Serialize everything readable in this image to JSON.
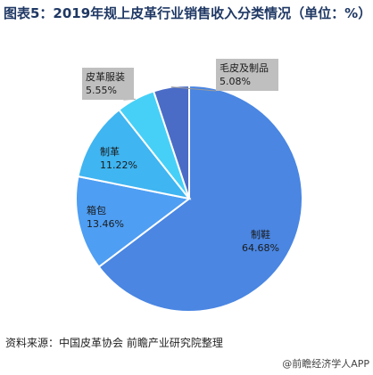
{
  "chart_data": {
    "type": "pie",
    "title": "图表5：2019年规上皮革行业销售收入分类情况（单位：%）",
    "slices": [
      {
        "name": "制鞋",
        "value": 64.68,
        "display": "64.68%",
        "color": "#4a86e2"
      },
      {
        "name": "箱包",
        "value": 13.46,
        "display": "13.46%",
        "color": "#4e9ef3"
      },
      {
        "name": "制革",
        "value": 11.22,
        "display": "11.22%",
        "color": "#3fb5f1"
      },
      {
        "name": "皮革服装",
        "value": 5.55,
        "display": "5.55%",
        "color": "#46d0f8"
      },
      {
        "name": "毛皮及制品",
        "value": 5.08,
        "display": "5.08%",
        "color": "#4a6cc6"
      }
    ]
  },
  "footer": {
    "source": "资料来源：中国皮革协会 前瞻产业研究院整理",
    "brand": "@前瞻经济学人APP"
  }
}
